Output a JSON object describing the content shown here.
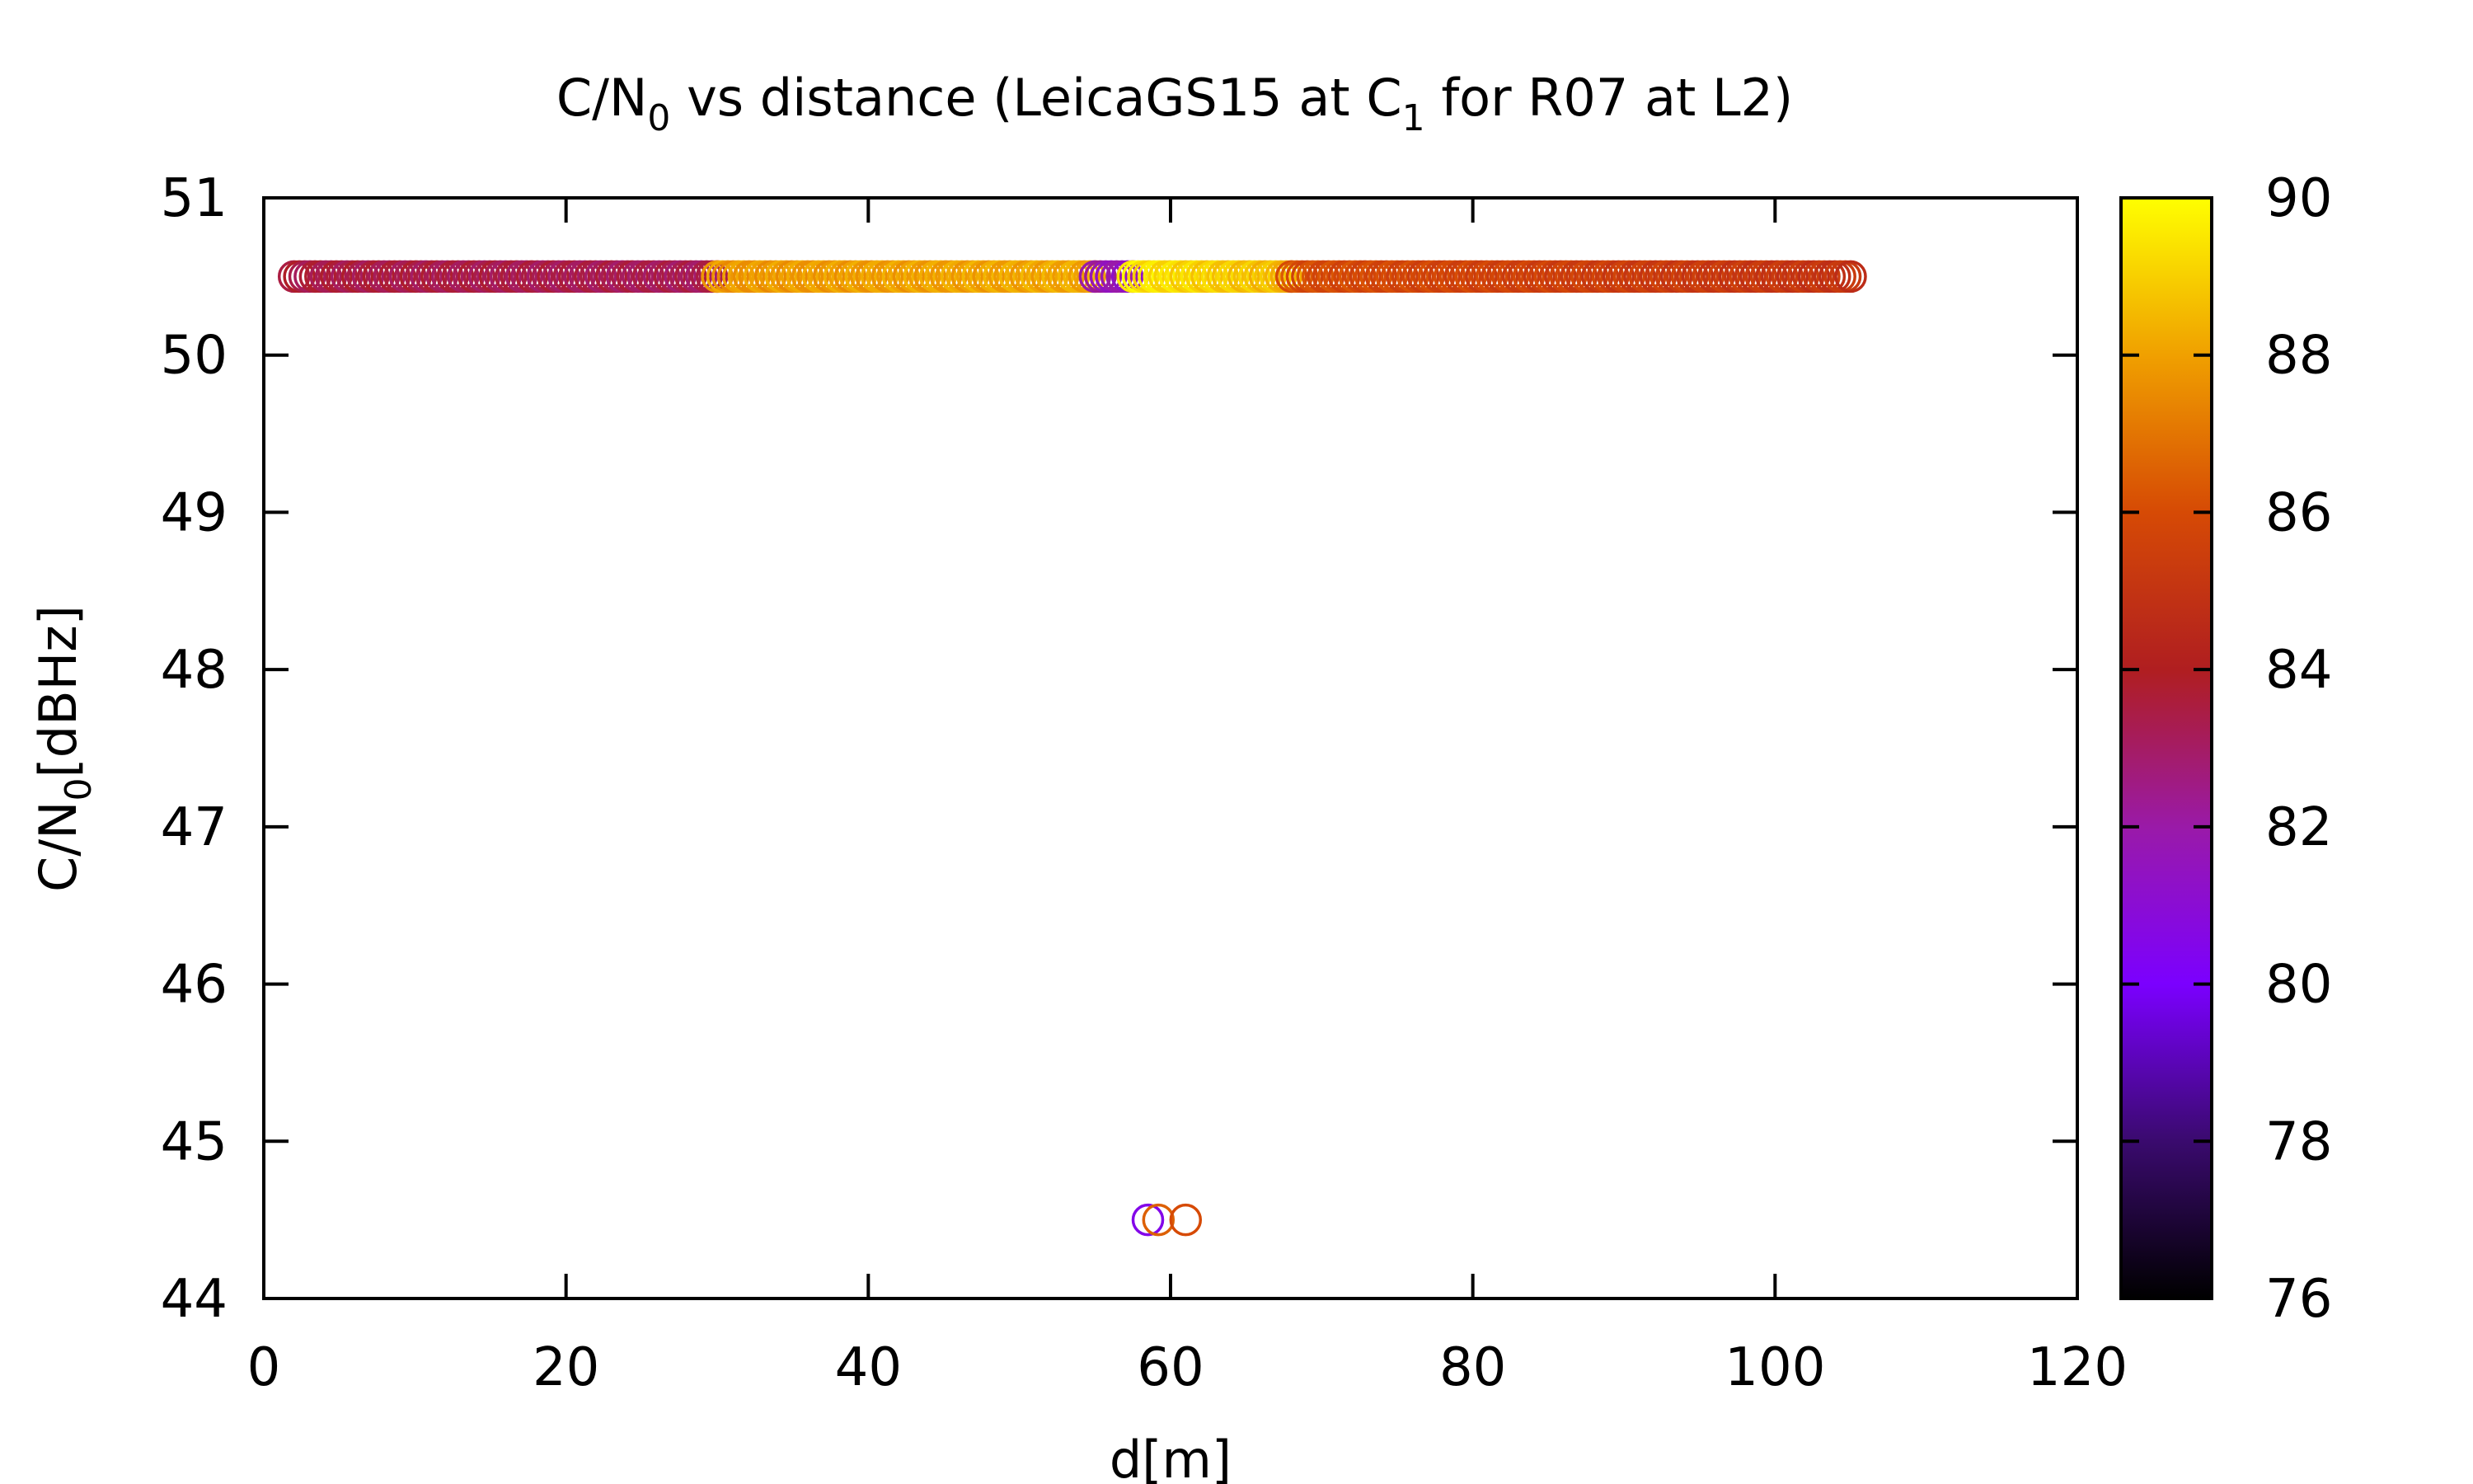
{
  "chart_data": {
    "type": "scatter",
    "title": {
      "prefix": "C/N",
      "sub1": "0",
      "middle": " vs distance (LeicaGS15 at C",
      "sub2": "1",
      "suffix": " for R07 at L2)"
    },
    "xlabel": "d[m]",
    "ylabel": {
      "prefix": "C/N",
      "sub": "0",
      "suffix": "[dBHz]"
    },
    "xlim": [
      0,
      120
    ],
    "ylim": [
      44,
      51
    ],
    "xticks": [
      "0",
      "20",
      "40",
      "60",
      "80",
      "100",
      "120"
    ],
    "yticks": [
      "44",
      "45",
      "46",
      "47",
      "48",
      "49",
      "50",
      "51"
    ],
    "colorbar": {
      "range": [
        76,
        90
      ],
      "ticks": [
        "76",
        "78",
        "80",
        "82",
        "84",
        "86",
        "88",
        "90"
      ],
      "palette": [
        "#000000",
        "#3a0a6e",
        "#7b00ff",
        "#9a1aa8",
        "#b01e20",
        "#d64a05",
        "#f0a000",
        "#ffff00"
      ]
    },
    "grid": false,
    "series": [
      {
        "segments": [
          {
            "x_start": 2,
            "x_end": 30,
            "y": 50.5,
            "c_start": 83.5,
            "c_end": 83.2
          },
          {
            "x_start": 30,
            "x_end": 55,
            "y": 50.5,
            "c_start": 87.8,
            "c_end": 88.2
          },
          {
            "x_start": 55,
            "x_end": 57.5,
            "y": 50.5,
            "c_start": 82.0,
            "c_end": 81.5
          },
          {
            "x_start": 57.5,
            "x_end": 68,
            "y": 50.5,
            "c_start": 89.5,
            "c_end": 88.5
          },
          {
            "x_start": 68,
            "x_end": 105,
            "y": 50.5,
            "c_start": 86.0,
            "c_end": 85.0
          }
        ],
        "points": [
          {
            "x": 58.5,
            "y": 44.5,
            "c": 80.5
          },
          {
            "x": 59.2,
            "y": 44.5,
            "c": 86.5
          },
          {
            "x": 61.0,
            "y": 44.5,
            "c": 86.0
          }
        ]
      }
    ]
  }
}
